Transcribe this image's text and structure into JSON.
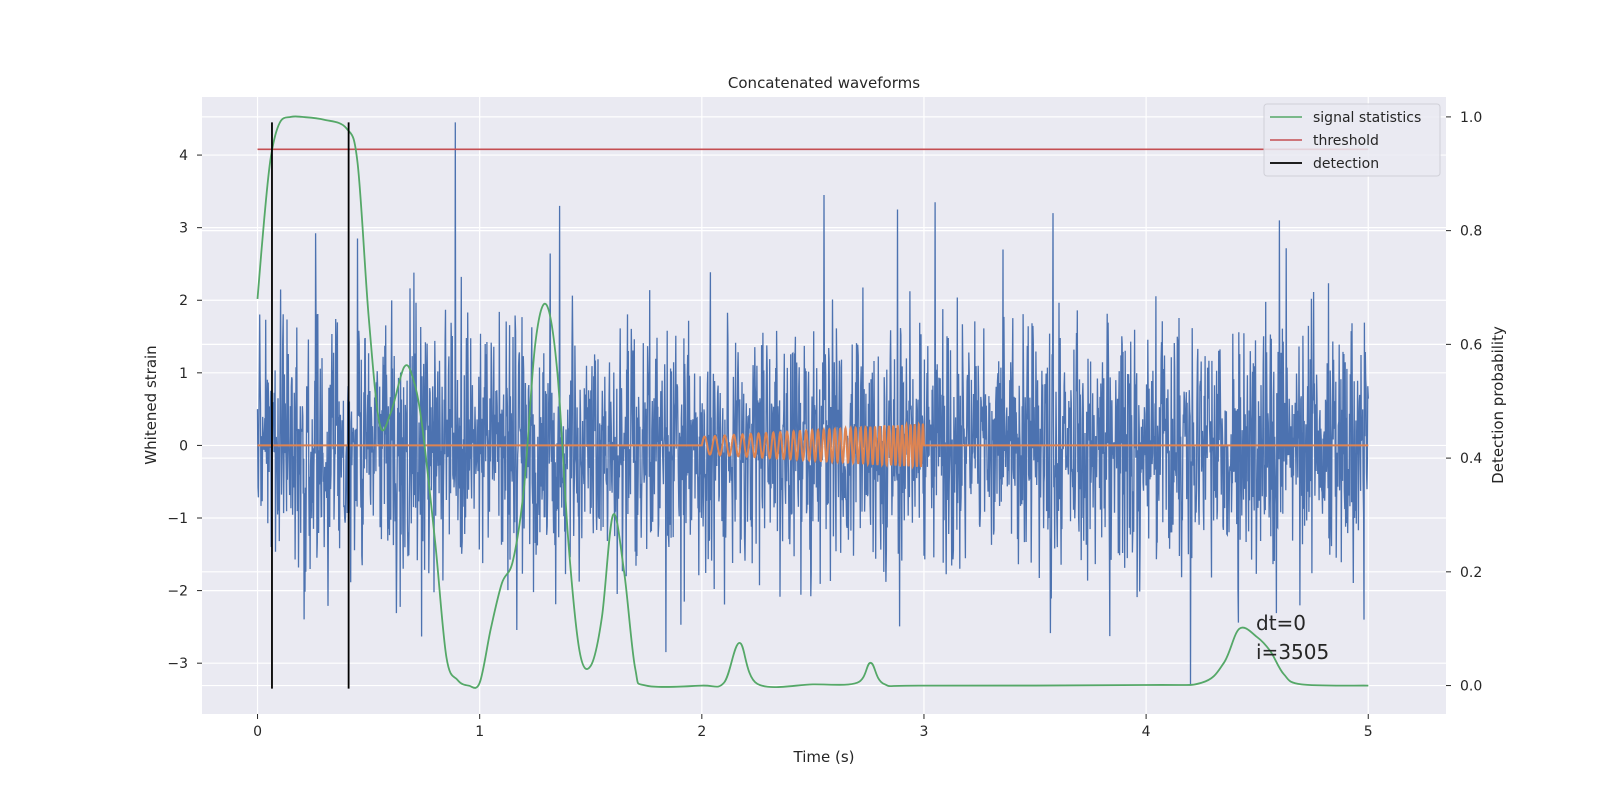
{
  "chart_data": {
    "type": "line",
    "title": "Concatenated waveforms",
    "xlabel": "Time (s)",
    "ylabel": "Whitened strain",
    "y2label": "Detection probability",
    "xlim": [
      -0.25,
      5.35
    ],
    "ylim": [
      -3.7,
      4.8
    ],
    "y2lim": [
      -0.05,
      1.035
    ],
    "xticks": [
      0,
      1,
      2,
      3,
      4,
      5
    ],
    "yticks": [
      -3,
      -2,
      -1,
      0,
      1,
      2,
      3,
      4
    ],
    "y2ticks": [
      0.0,
      0.2,
      0.4,
      0.6,
      0.8,
      1.0
    ],
    "xtick_labels": [
      "0",
      "1",
      "2",
      "3",
      "4",
      "5"
    ],
    "ytick_labels": [
      "−3",
      "−2",
      "−1",
      "0",
      "1",
      "2",
      "3",
      "4"
    ],
    "y2tick_labels": [
      "0.0",
      "0.2",
      "0.4",
      "0.6",
      "0.8",
      "1.0"
    ],
    "grid": true,
    "legend_position": "top-right",
    "legend": [
      "signal statistics",
      "threshold",
      "detection"
    ],
    "annotations": [
      "dt=0",
      "i=3505"
    ],
    "colors": {
      "strain": "#4c72b0",
      "template": "#dd8452",
      "statistics": "#55a868",
      "threshold": "#c44e52",
      "detection": "#000000",
      "background": "#eaeaf2"
    },
    "series": [
      {
        "axis": "left",
        "kind": "noise",
        "x_range": [
          0,
          5
        ],
        "envelope": 3.0,
        "notable_spikes": [
          [
            0.45,
            2.85
          ],
          [
            0.89,
            4.45
          ],
          [
            1.36,
            3.3
          ],
          [
            2.55,
            3.45
          ],
          [
            2.88,
            3.25
          ],
          [
            3.05,
            3.35
          ],
          [
            3.58,
            3.2
          ],
          [
            4.2,
            -3.3
          ],
          [
            4.6,
            3.1
          ],
          [
            4.98,
            -2.4
          ]
        ]
      },
      {
        "axis": "left",
        "kind": "chirp",
        "x_range": [
          0,
          5
        ],
        "chirp_start": 2.0,
        "chirp_end": 3.0,
        "amplitude_start": 0.12,
        "amplitude_end": 0.3,
        "freq_start": 20,
        "freq_end": 55
      },
      {
        "axis": "left",
        "name": "threshold",
        "x": [
          0,
          5
        ],
        "y": [
          4.08,
          4.08
        ]
      },
      {
        "axis": "right",
        "name": "signal statistics",
        "x": [
          0,
          0.03,
          0.06,
          0.1,
          0.15,
          0.2,
          0.3,
          0.4,
          0.45,
          0.5,
          0.55,
          0.6,
          0.66,
          0.7,
          0.74,
          0.8,
          0.85,
          0.9,
          0.95,
          1.0,
          1.05,
          1.1,
          1.15,
          1.2,
          1.25,
          1.3,
          1.35,
          1.4,
          1.45,
          1.5,
          1.55,
          1.6,
          1.65,
          1.7,
          1.75,
          2.0,
          2.1,
          2.17,
          2.25,
          2.5,
          2.7,
          2.76,
          2.82,
          3.0,
          4.0,
          4.25,
          4.35,
          4.42,
          4.5,
          4.56,
          4.62,
          4.7,
          5.0
        ],
        "y": [
          0.68,
          0.82,
          0.93,
          0.99,
          1.0,
          1.0,
          0.995,
          0.98,
          0.92,
          0.65,
          0.46,
          0.48,
          0.56,
          0.54,
          0.46,
          0.25,
          0.05,
          0.01,
          0.0,
          0.005,
          0.1,
          0.18,
          0.22,
          0.35,
          0.6,
          0.67,
          0.55,
          0.25,
          0.06,
          0.035,
          0.12,
          0.3,
          0.2,
          0.03,
          0.0,
          0.0,
          0.005,
          0.075,
          0.003,
          0.002,
          0.005,
          0.04,
          0.003,
          0.0,
          0.001,
          0.005,
          0.04,
          0.1,
          0.085,
          0.06,
          0.02,
          0.002,
          0.0
        ]
      },
      {
        "axis": "left",
        "name": "detection",
        "lines": [
          [
            0.065,
            -3.35,
            4.45
          ],
          [
            0.41,
            -3.35,
            4.45
          ]
        ]
      }
    ]
  }
}
